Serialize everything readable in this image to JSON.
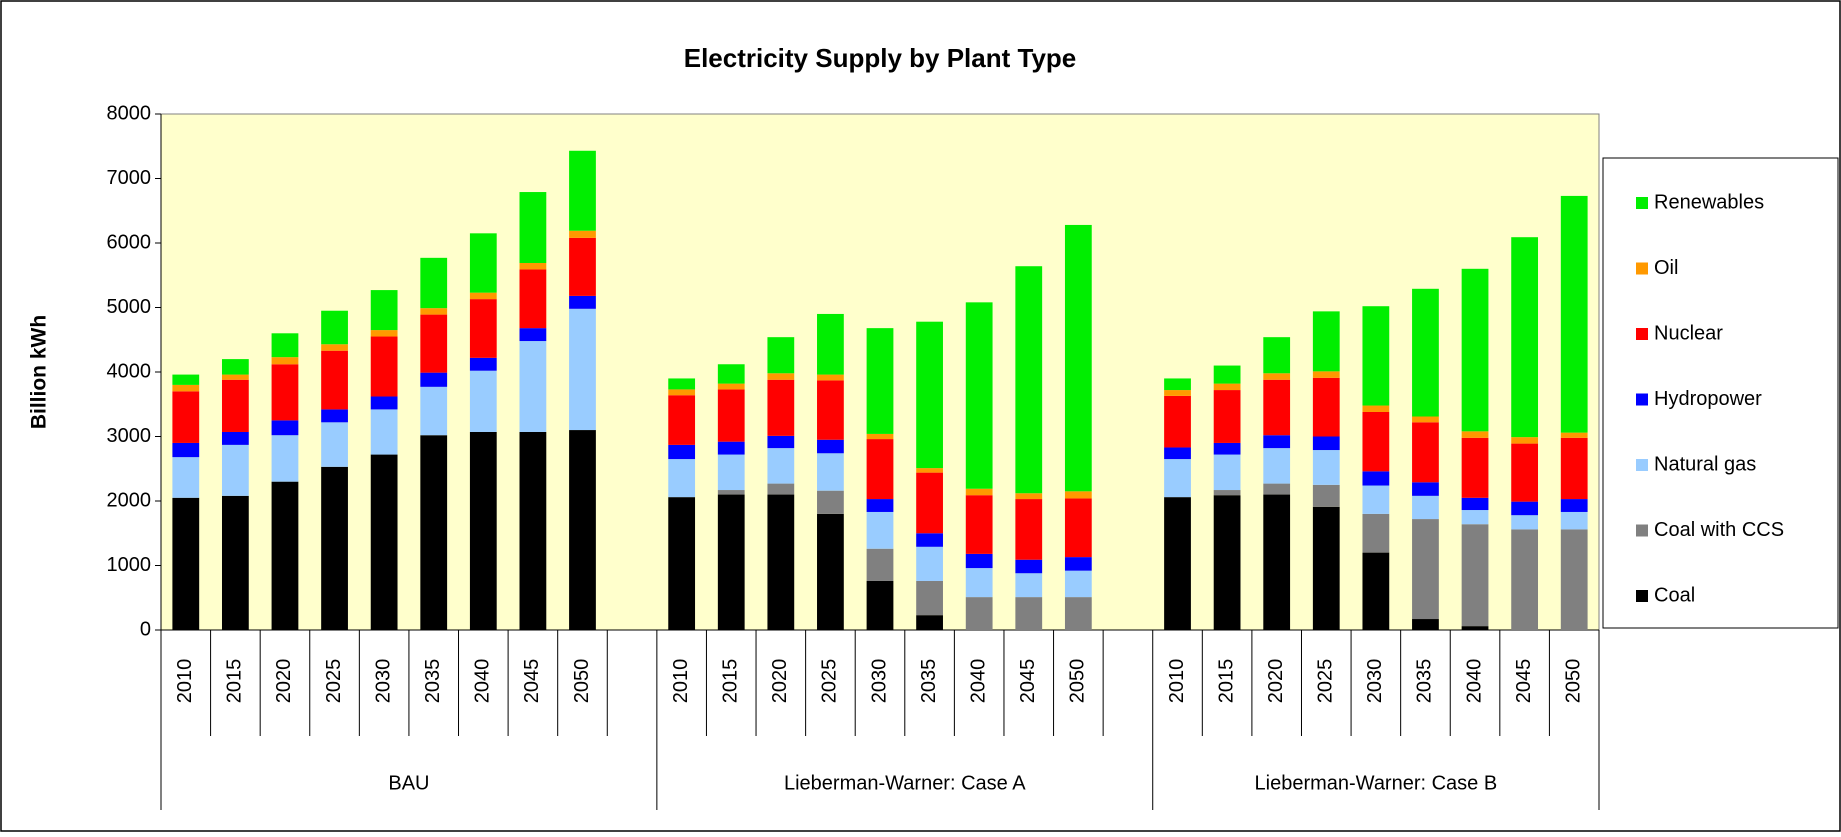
{
  "chart_data": {
    "type": "stacked_bar",
    "title": "Electricity Supply by Plant Type",
    "y_label": "Billion kWh",
    "categories": [
      "2010",
      "2015",
      "2020",
      "2025",
      "2030",
      "2035",
      "2040",
      "2045",
      "2050",
      null,
      "2010",
      "2015",
      "2020",
      "2025",
      "2030",
      "2035",
      "2040",
      "2045",
      "2050",
      null,
      "2010",
      "2015",
      "2020",
      "2025",
      "2030",
      "2035",
      "2040",
      "2045",
      "2050"
    ],
    "category_groups": [
      "BAU",
      "Lieberman-Warner: Case A",
      "Lieberman-Warner: Case B"
    ],
    "series": [
      {
        "name": "Coal",
        "color": "#000000",
        "values": [
          2050,
          2080,
          2300,
          2530,
          2720,
          3020,
          3070,
          3070,
          3100,
          null,
          2060,
          2100,
          2100,
          1800,
          760,
          230,
          0,
          0,
          0,
          null,
          2060,
          2090,
          2100,
          1910,
          1200,
          170,
          60,
          0,
          0
        ]
      },
      {
        "name": "Coal with CCS",
        "color": "#808080",
        "values": [
          0,
          0,
          0,
          0,
          0,
          0,
          0,
          0,
          0,
          null,
          0,
          70,
          170,
          360,
          500,
          530,
          510,
          510,
          510,
          null,
          0,
          80,
          170,
          340,
          600,
          1550,
          1580,
          1560,
          1560
        ]
      },
      {
        "name": "Natural gas",
        "color": "#99ccff",
        "values": [
          630,
          790,
          720,
          690,
          700,
          750,
          950,
          1410,
          1880,
          null,
          590,
          550,
          550,
          580,
          570,
          530,
          450,
          370,
          410,
          null,
          590,
          550,
          550,
          540,
          440,
          360,
          220,
          220,
          270
        ]
      },
      {
        "name": "Hydropower",
        "color": "#0000ff",
        "values": [
          220,
          200,
          230,
          200,
          200,
          220,
          200,
          200,
          200,
          null,
          220,
          200,
          190,
          210,
          200,
          210,
          220,
          210,
          210,
          null,
          180,
          180,
          200,
          210,
          220,
          210,
          190,
          210,
          200
        ]
      },
      {
        "name": "Nuclear",
        "color": "#ff0000",
        "values": [
          800,
          810,
          870,
          910,
          930,
          900,
          910,
          910,
          900,
          null,
          770,
          810,
          870,
          920,
          930,
          940,
          910,
          940,
          910,
          null,
          800,
          820,
          860,
          910,
          920,
          930,
          930,
          900,
          950
        ]
      },
      {
        "name": "Oil",
        "color": "#ff9900",
        "values": [
          100,
          80,
          110,
          100,
          100,
          100,
          100,
          100,
          110,
          null,
          90,
          90,
          100,
          90,
          80,
          70,
          100,
          90,
          110,
          null,
          90,
          100,
          100,
          100,
          100,
          90,
          100,
          100,
          80
        ]
      },
      {
        "name": "Renewables",
        "color": "#00ee00",
        "values": [
          160,
          240,
          370,
          520,
          620,
          780,
          920,
          1100,
          1240,
          null,
          170,
          300,
          560,
          940,
          1640,
          2270,
          2890,
          3520,
          4130,
          null,
          180,
          280,
          560,
          930,
          1540,
          1980,
          2520,
          3100,
          3670
        ]
      }
    ],
    "ylim": [
      0,
      8000
    ],
    "yticks": [
      0,
      1000,
      2000,
      3000,
      4000,
      5000,
      6000,
      7000,
      8000
    ],
    "legend": "right",
    "plot_background": "#ffffcc"
  }
}
